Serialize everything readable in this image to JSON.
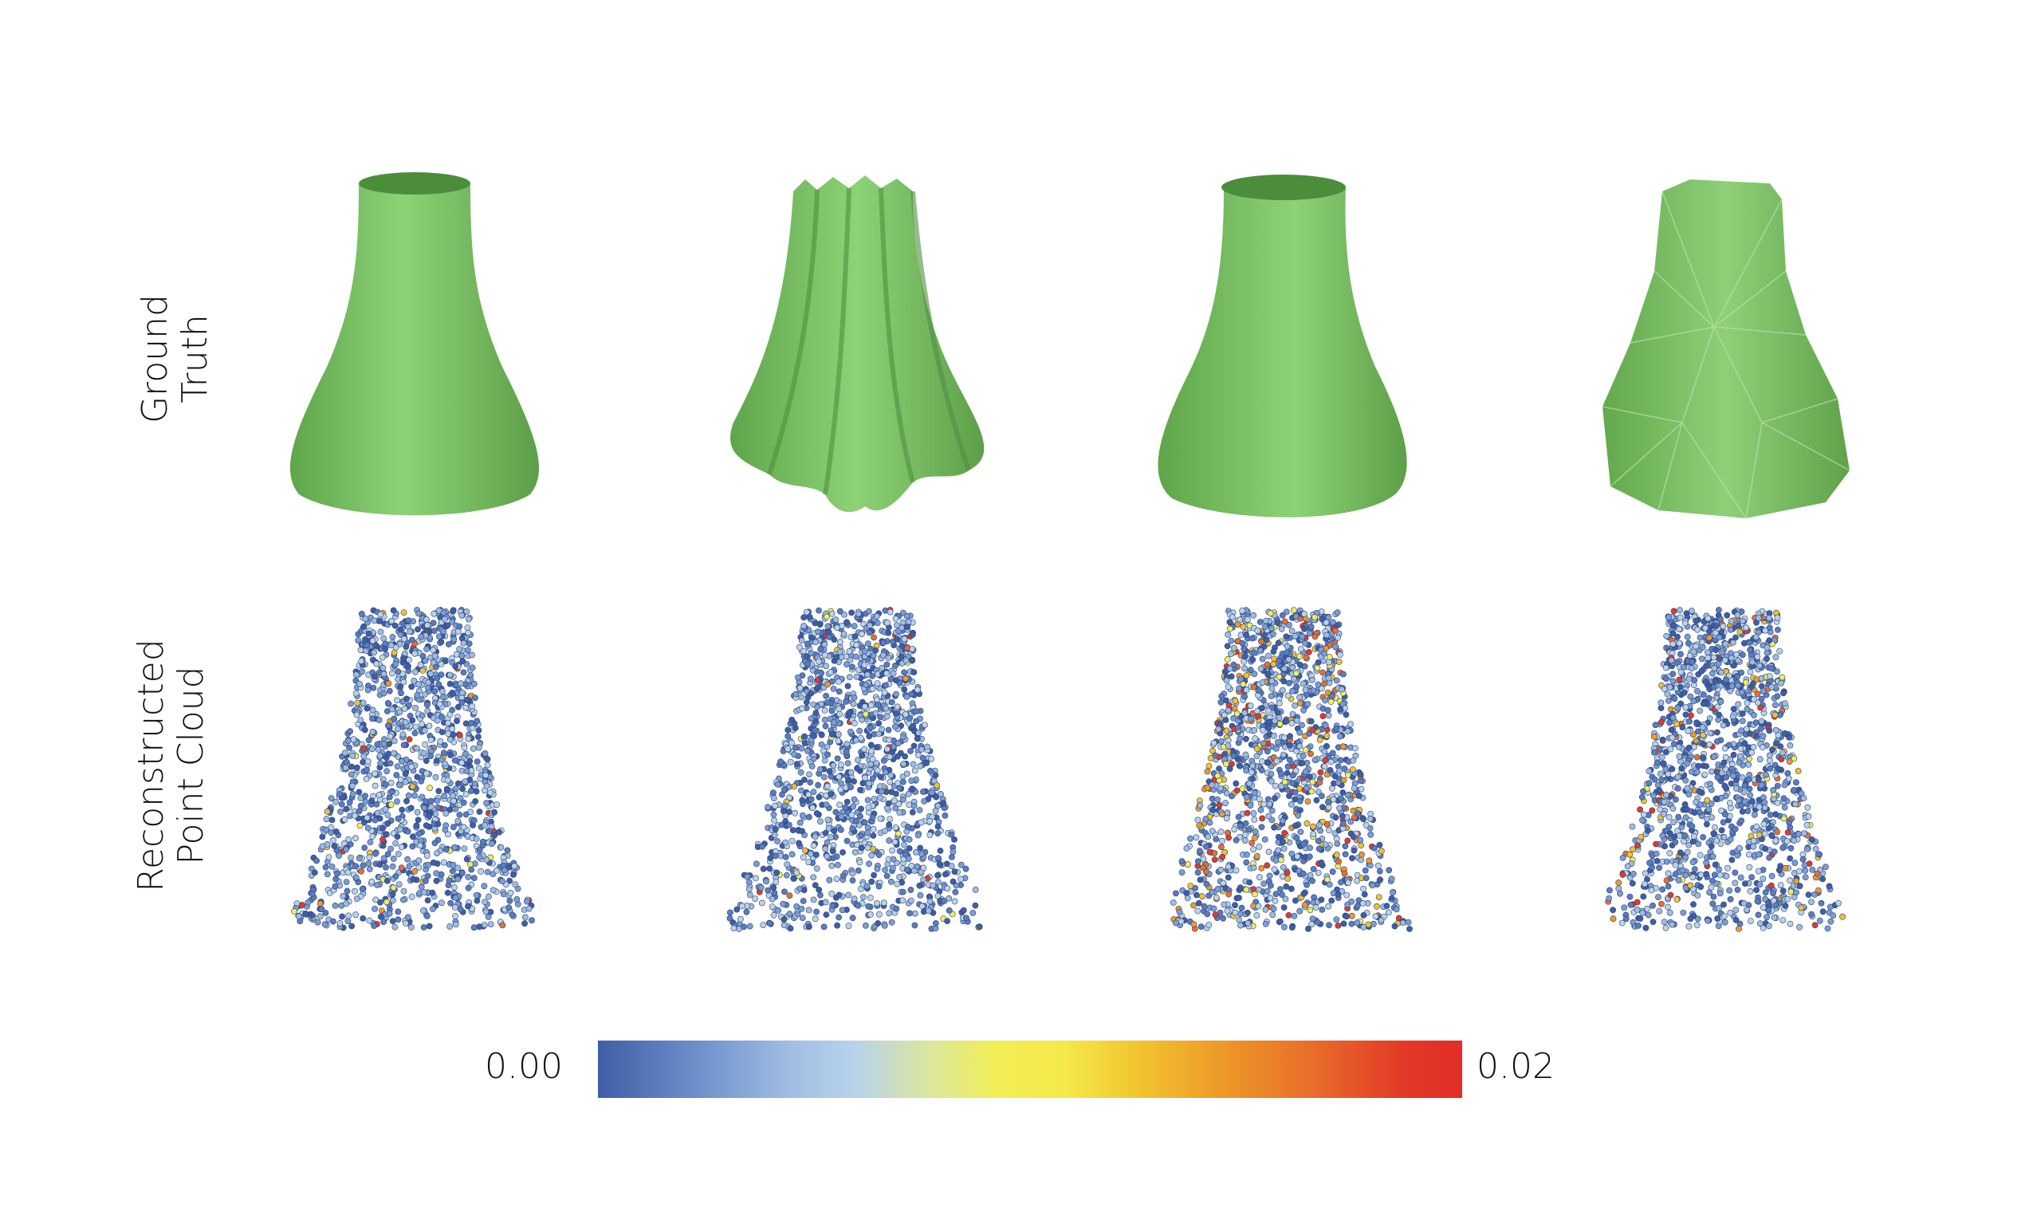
{
  "row_labels": {
    "top": [
      "Ground",
      "Truth"
    ],
    "bottom": [
      "Reconstructed",
      "Point Cloud"
    ]
  },
  "columns": [
    {
      "shape": "smooth-vase",
      "error_profile": "low"
    },
    {
      "shape": "fluted-vase",
      "error_profile": "low"
    },
    {
      "shape": "twisted-vase",
      "error_profile": "high"
    },
    {
      "shape": "faceted-vase",
      "error_profile": "medium"
    }
  ],
  "mesh_color": "#7cc466",
  "colorbar": {
    "min_label": "0.00",
    "max_label": "0.02",
    "colors": [
      "#3f5ea6",
      "#9fbde2",
      "#f2ee56",
      "#ee9a28",
      "#e22d26"
    ]
  }
}
